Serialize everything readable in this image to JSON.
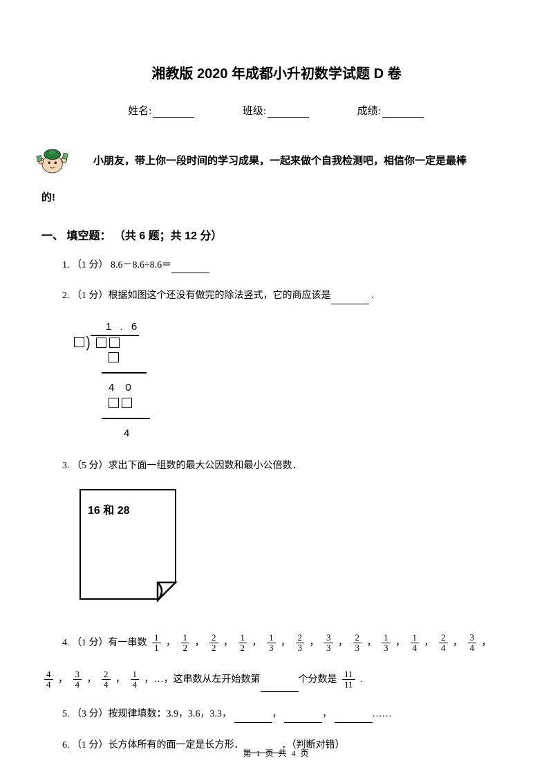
{
  "title": "湘教版 2020 年成都小升初数学试题 D 卷",
  "info": {
    "name_label": "姓名:",
    "class_label": "班级:",
    "score_label": "成绩:"
  },
  "intro": {
    "line1": "小朋友，带上你一段时间的学习成果，一起来做个自我检测吧，相信你一定是最棒",
    "line2": "的!"
  },
  "section1": {
    "header": "一、 填空题：  （共 6 题；共 12 分）",
    "q1": {
      "prefix": "1.  （1 分）  8.6－8.6÷8.6＝"
    },
    "q2": {
      "prefix": "2.  （1 分）根据如图这个还没有做完的除法竖式，它的商应该是",
      "suffix": " ."
    },
    "division": {
      "quotient": "1 . 6",
      "row_40": "4 0",
      "remainder": "4"
    },
    "q3": {
      "text": "3.  （5 分）求出下面一组数的最大公因数和最小公倍数．"
    },
    "note_text": "16 和 28",
    "q4": {
      "prefix": "4.  （1 分）有一串数",
      "fractions1": [
        {
          "n": "1",
          "d": "1"
        },
        {
          "n": "1",
          "d": "2"
        },
        {
          "n": "2",
          "d": "2"
        },
        {
          "n": "1",
          "d": "2"
        },
        {
          "n": "1",
          "d": "3"
        },
        {
          "n": "2",
          "d": "3"
        },
        {
          "n": "3",
          "d": "3"
        },
        {
          "n": "2",
          "d": "3"
        },
        {
          "n": "1",
          "d": "3"
        },
        {
          "n": "1",
          "d": "4"
        },
        {
          "n": "2",
          "d": "4"
        },
        {
          "n": "3",
          "d": "4"
        }
      ],
      "fractions2": [
        {
          "n": "4",
          "d": "4"
        },
        {
          "n": "3",
          "d": "4"
        },
        {
          "n": "2",
          "d": "4"
        },
        {
          "n": "1",
          "d": "4"
        }
      ],
      "mid": "，…，这串数从左开始数第",
      "tail": "个分数是",
      "target": {
        "n": "11",
        "d": "11"
      },
      "period": " ."
    },
    "q5": {
      "prefix": "5.  （3 分）按规律填数：3.9，3.6，3.3，",
      "sep": "，",
      "tail": "……"
    },
    "q6": {
      "prefix": "6.  （1 分）长方体所有的面一定是长方形．",
      "suffix": "．（判断对错）"
    }
  },
  "footer": "第 1 页 共 4 页"
}
